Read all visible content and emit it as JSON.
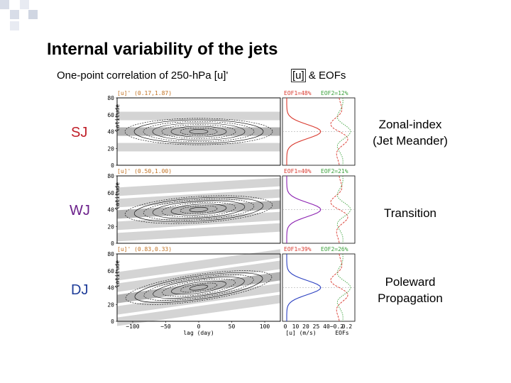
{
  "slide": {
    "title": "Internal variability of the jets",
    "subtitle_left": "One-point correlation of 250-hPa [u]'",
    "subtitle_right_symbol": "[u]",
    "subtitle_right_rest": " & EOFs"
  },
  "rows": [
    {
      "label": "SJ",
      "label_color": "#c0202a",
      "panel_title": "[u]' (0.17,1.87)",
      "eof1": "EOF1=48%",
      "eof2": "EOF2=12%",
      "description": [
        "Zonal-index",
        "(Jet Meander)"
      ],
      "profile_color": "#d9382d"
    },
    {
      "label": "WJ",
      "label_color": "#6a1f8a",
      "panel_title": "[u]' (0.50,1.00)",
      "eof1": "EOF1=40%",
      "eof2": "EOF2=21%",
      "description": [
        "Transition"
      ],
      "profile_color": "#8a1fb0"
    },
    {
      "label": "DJ",
      "label_color": "#1f3d99",
      "panel_title": "[u]' (0.83,0.33)",
      "eof1": "EOF1=39%",
      "eof2": "EOF2=26%",
      "description": [
        "Poleward",
        "Propagation"
      ],
      "profile_color": "#2a3fc0"
    }
  ],
  "axes": {
    "ylabel": "latitude",
    "y_ticks": [
      "0",
      "20",
      "40",
      "60",
      "80"
    ],
    "x_ticks": [
      "−100",
      "−50",
      "0",
      "50",
      "100"
    ],
    "xlabel": "lag (day)",
    "right_x_ticks": [
      "0",
      "10",
      "20",
      "25",
      "40",
      "−0.2",
      "0.2"
    ],
    "right_xlabel": "[u] (m/s)",
    "right_xlabel2": "EOFs"
  },
  "colors": {
    "eof1": "#d9382d",
    "eof2": "#3aa03a",
    "panel_title": "#c07020",
    "eof_label": "#d08000",
    "shade": "#a0a0a0"
  }
}
